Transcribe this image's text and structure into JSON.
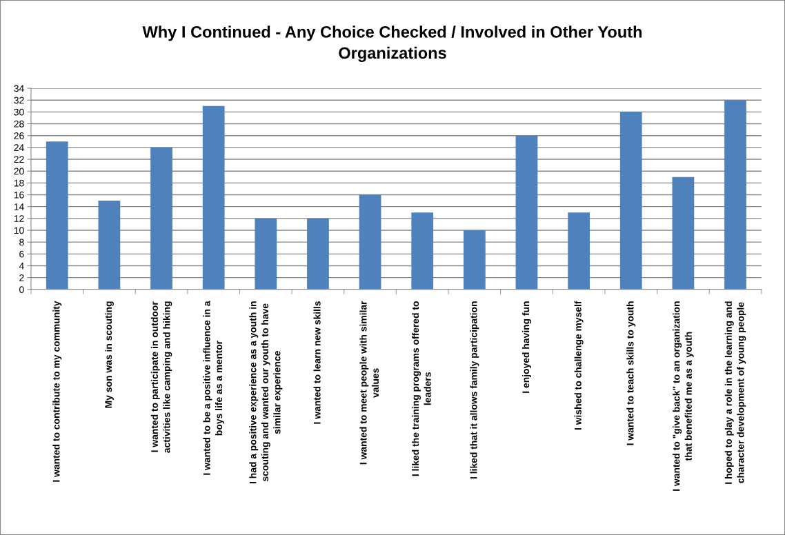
{
  "chart_data": {
    "type": "bar",
    "title": "Why I Continued - Any Choice Checked / Involved in Other Youth\nOrganizations",
    "categories": [
      "I wanted to contribute to my community",
      "My son was in scouting",
      "I wanted to participate in outdoor\nactivities like camping and hiking",
      "I wanted to be a positive influence in a\nboys life as a mentor",
      "I had a positive experience as a youth in\nscouting and wanted our youth to have\nsimilar experience",
      "I wanted to learn new skills",
      "I wanted to meet people with similar\nvalues",
      "I liked the training programs offered to\nleaders",
      "I liked that it allows family participation",
      "I enjoyed having fun",
      "I wished to challenge myself",
      "I wanted to teach skills to youth",
      "I wanted to \"give back\" to an organization\nthat benefited me as a youth",
      "I hoped to play a role in the learning and\ncharacter development of young people"
    ],
    "values": [
      25,
      15,
      24,
      31,
      12,
      12,
      16,
      13,
      10,
      26,
      13,
      30,
      19,
      32
    ],
    "color": "#4f81bd",
    "ylim": [
      0,
      34
    ],
    "yticks": [
      0,
      2,
      4,
      6,
      8,
      10,
      12,
      14,
      16,
      18,
      20,
      22,
      24,
      26,
      28,
      30,
      32,
      34
    ],
    "grid": "y"
  }
}
